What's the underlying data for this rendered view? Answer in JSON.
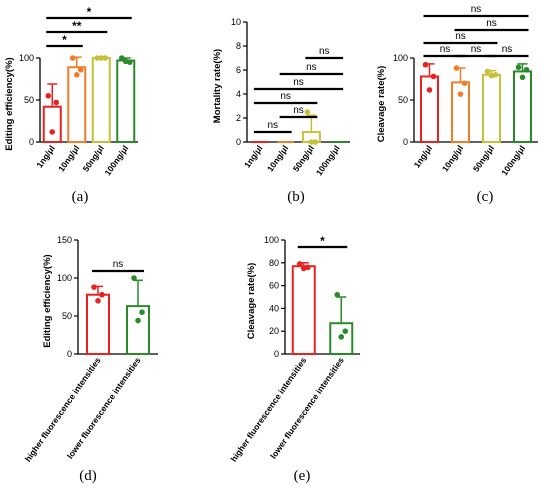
{
  "chart_data": [
    {
      "type": "bar",
      "panel_label": "(a)",
      "ylabel": "Editing efficiency(%)",
      "ylim": [
        0,
        100
      ],
      "yticks": [
        0,
        50,
        100
      ],
      "categories": [
        "1ng/μl",
        "10ng/μl",
        "50ng/μl",
        "100ng/μl"
      ],
      "values": [
        42,
        89,
        100,
        97
      ],
      "errors": [
        27,
        12,
        0,
        3
      ],
      "colors": [
        "#e8231f",
        "#f07d2a",
        "#c5c13a",
        "#2a8a2a"
      ],
      "points": [
        [
          55,
          47,
          12
        ],
        [
          100,
          86,
          80
        ],
        [
          100,
          100,
          100
        ],
        [
          100,
          95,
          96
        ]
      ],
      "comparisons": [
        {
          "from": 0,
          "to": 1,
          "label": "*"
        },
        {
          "from": 0,
          "to": 2,
          "label": "**"
        },
        {
          "from": 0,
          "to": 3,
          "label": "*"
        }
      ]
    },
    {
      "type": "bar",
      "panel_label": "(b)",
      "ylabel": "Mortality rate(%)",
      "ylim": [
        0,
        10
      ],
      "yticks": [
        0,
        2,
        4,
        6,
        8,
        10
      ],
      "categories": [
        "1ng/μl",
        "10ng/μl",
        "50ng/μl",
        "100ng/μl"
      ],
      "values": [
        0,
        0,
        0.83,
        0
      ],
      "errors": [
        0,
        0,
        1.4,
        0
      ],
      "colors": [
        "#e8231f",
        "#f07d2a",
        "#c5c13a",
        "#2a8a2a"
      ],
      "points": [
        [],
        [],
        [
          2.5,
          0,
          0
        ],
        []
      ],
      "comparisons": [
        {
          "from": 0,
          "to": 1,
          "label": "ns"
        },
        {
          "from": 0,
          "to": 2,
          "label": "ns"
        },
        {
          "from": 0,
          "to": 3,
          "label": "ns"
        },
        {
          "from": 1,
          "to": 2,
          "label": "ns"
        },
        {
          "from": 1,
          "to": 3,
          "label": "ns"
        },
        {
          "from": 2,
          "to": 3,
          "label": "ns"
        }
      ]
    },
    {
      "type": "bar",
      "panel_label": "(c)",
      "ylabel": "Cleavage rate(%)",
      "ylim": [
        0,
        100
      ],
      "yticks": [
        0,
        50,
        100
      ],
      "categories": [
        "1ng/μl",
        "10ng/μl",
        "50ng/μl",
        "100ng/μl"
      ],
      "values": [
        78,
        71,
        80,
        84
      ],
      "errors": [
        15,
        17,
        5,
        9
      ],
      "colors": [
        "#e8231f",
        "#f07d2a",
        "#c5c13a",
        "#2a8a2a"
      ],
      "points": [
        [
          92,
          78,
          62
        ],
        [
          88,
          70,
          57
        ],
        [
          84,
          80,
          79
        ],
        [
          89,
          86,
          77
        ]
      ],
      "comparisons": [
        {
          "from": 0,
          "to": 1,
          "label": "ns"
        },
        {
          "from": 1,
          "to": 2,
          "label": "ns"
        },
        {
          "from": 2,
          "to": 3,
          "label": "ns"
        },
        {
          "from": 0,
          "to": 2,
          "label": "ns"
        },
        {
          "from": 1,
          "to": 3,
          "label": "ns"
        },
        {
          "from": 0,
          "to": 3,
          "label": "ns"
        }
      ]
    },
    {
      "type": "bar",
      "panel_label": "(d)",
      "ylabel": "Editing efficiency(%)",
      "ylim": [
        0,
        150
      ],
      "yticks": [
        0,
        50,
        100,
        150
      ],
      "categories": [
        "higher fluorescence intensities",
        "lower fluorescence intensities"
      ],
      "values": [
        78,
        63
      ],
      "errors": [
        11,
        34
      ],
      "colors": [
        "#e8231f",
        "#2a8a2a"
      ],
      "points": [
        [
          88,
          78,
          70
        ],
        [
          100,
          55,
          44
        ]
      ],
      "comparisons": [
        {
          "from": 0,
          "to": 1,
          "label": "ns"
        }
      ]
    },
    {
      "type": "bar",
      "panel_label": "(e)",
      "ylabel": "Cleavage rate(%)",
      "ylim": [
        0,
        100
      ],
      "yticks": [
        0,
        20,
        40,
        60,
        80,
        100
      ],
      "categories": [
        "higher fluorescence intensities",
        "lower fluorescence intensities"
      ],
      "values": [
        77,
        27
      ],
      "errors": [
        3,
        23
      ],
      "colors": [
        "#e8231f",
        "#2a8a2a"
      ],
      "points": [
        [
          79,
          76,
          75
        ],
        [
          52,
          20,
          15
        ]
      ],
      "comparisons": [
        {
          "from": 0,
          "to": 1,
          "label": "*"
        }
      ]
    }
  ]
}
